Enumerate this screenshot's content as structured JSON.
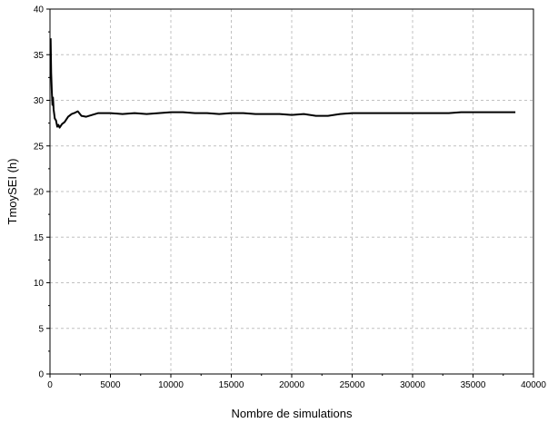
{
  "chart_data": {
    "type": "line",
    "title": "",
    "xlabel": "Nombre de simulations",
    "ylabel": "TmoySEI (h)",
    "xlim": [
      0,
      40000
    ],
    "ylim": [
      0,
      40
    ],
    "xticks": [
      0,
      5000,
      10000,
      15000,
      20000,
      25000,
      30000,
      35000,
      40000
    ],
    "yticks": [
      0,
      5,
      10,
      15,
      20,
      25,
      30,
      35,
      40
    ],
    "grid": true,
    "legend": "none",
    "series": [
      {
        "color": "#000000",
        "x": [
          50,
          100,
          150,
          200,
          250,
          300,
          400,
          500,
          600,
          700,
          800,
          1000,
          1200,
          1500,
          1800,
          2000,
          2300,
          2600,
          3000,
          3500,
          4000,
          5000,
          6000,
          7000,
          8000,
          9000,
          10000,
          11000,
          12000,
          13000,
          14000,
          15000,
          16000,
          17000,
          18000,
          19000,
          20000,
          21000,
          22000,
          23000,
          24000,
          25000,
          26000,
          27000,
          28000,
          29000,
          30000,
          31000,
          32000,
          33000,
          34000,
          35000,
          36000,
          37000,
          38500
        ],
        "y": [
          36.8,
          33.0,
          31.0,
          29.5,
          30.3,
          29.0,
          28.0,
          27.8,
          27.1,
          27.3,
          27.0,
          27.4,
          27.6,
          28.2,
          28.5,
          28.6,
          28.8,
          28.3,
          28.2,
          28.4,
          28.6,
          28.6,
          28.5,
          28.6,
          28.5,
          28.6,
          28.7,
          28.7,
          28.6,
          28.6,
          28.5,
          28.6,
          28.6,
          28.5,
          28.5,
          28.5,
          28.4,
          28.5,
          28.3,
          28.3,
          28.5,
          28.6,
          28.6,
          28.6,
          28.6,
          28.6,
          28.6,
          28.6,
          28.6,
          28.6,
          28.7,
          28.7,
          28.7,
          28.7,
          28.7
        ]
      }
    ]
  }
}
